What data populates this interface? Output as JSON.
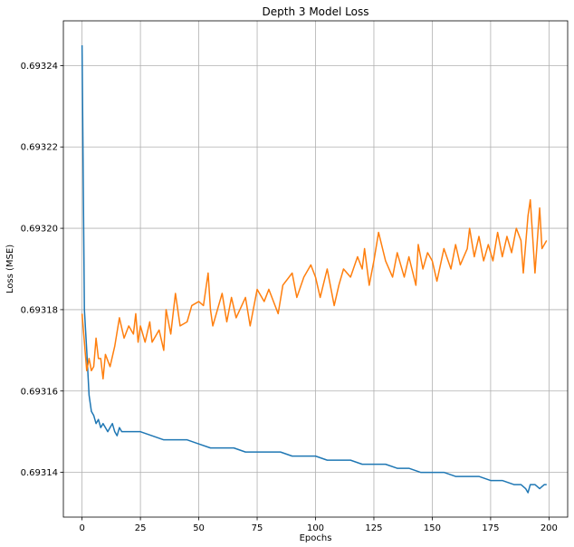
{
  "chart_data": {
    "type": "line",
    "title": "Depth 3 Model Loss",
    "xlabel": "Epochs",
    "ylabel": "Loss (MSE)",
    "xlim": [
      -8,
      208
    ],
    "ylim": [
      0.693129,
      0.693251
    ],
    "grid": true,
    "x_ticks": [
      0,
      25,
      50,
      75,
      100,
      125,
      150,
      175,
      200
    ],
    "y_ticks": [
      0.69314,
      0.69316,
      0.69318,
      0.6932,
      0.69322,
      0.69324
    ],
    "y_tick_labels": [
      "0.69314",
      "0.69316",
      "0.69318",
      "0.69320",
      "0.69322",
      "0.69324"
    ],
    "series": [
      {
        "color": "#1f77b4",
        "points": [
          [
            0,
            0.693245
          ],
          [
            1,
            0.69318
          ],
          [
            2,
            0.69317
          ],
          [
            3,
            0.693159
          ],
          [
            4,
            0.693155
          ],
          [
            5,
            0.693154
          ],
          [
            6,
            0.693152
          ],
          [
            7,
            0.693153
          ],
          [
            8,
            0.693151
          ],
          [
            9,
            0.693152
          ],
          [
            10,
            0.693151
          ],
          [
            11,
            0.69315
          ],
          [
            12,
            0.693151
          ],
          [
            13,
            0.693152
          ],
          [
            14,
            0.69315
          ],
          [
            15,
            0.693149
          ],
          [
            16,
            0.693151
          ],
          [
            17,
            0.69315
          ],
          [
            18,
            0.69315
          ],
          [
            19,
            0.69315
          ],
          [
            20,
            0.69315
          ],
          [
            25,
            0.69315
          ],
          [
            30,
            0.693149
          ],
          [
            35,
            0.693148
          ],
          [
            40,
            0.693148
          ],
          [
            45,
            0.693148
          ],
          [
            50,
            0.693147
          ],
          [
            55,
            0.693146
          ],
          [
            60,
            0.693146
          ],
          [
            65,
            0.693146
          ],
          [
            70,
            0.693145
          ],
          [
            75,
            0.693145
          ],
          [
            80,
            0.693145
          ],
          [
            85,
            0.693145
          ],
          [
            90,
            0.693144
          ],
          [
            95,
            0.693144
          ],
          [
            100,
            0.693144
          ],
          [
            105,
            0.693143
          ],
          [
            110,
            0.693143
          ],
          [
            115,
            0.693143
          ],
          [
            120,
            0.693142
          ],
          [
            125,
            0.693142
          ],
          [
            130,
            0.693142
          ],
          [
            135,
            0.693141
          ],
          [
            140,
            0.693141
          ],
          [
            145,
            0.69314
          ],
          [
            150,
            0.69314
          ],
          [
            155,
            0.69314
          ],
          [
            160,
            0.693139
          ],
          [
            165,
            0.693139
          ],
          [
            170,
            0.693139
          ],
          [
            175,
            0.693138
          ],
          [
            180,
            0.693138
          ],
          [
            185,
            0.693137
          ],
          [
            188,
            0.693137
          ],
          [
            190,
            0.693136
          ],
          [
            191,
            0.693135
          ],
          [
            192,
            0.693137
          ],
          [
            194,
            0.693137
          ],
          [
            196,
            0.693136
          ],
          [
            198,
            0.693137
          ],
          [
            199,
            0.693137
          ]
        ]
      },
      {
        "color": "#ff7f0e",
        "points": [
          [
            0,
            0.693179
          ],
          [
            1,
            0.693172
          ],
          [
            2,
            0.693165
          ],
          [
            3,
            0.693168
          ],
          [
            4,
            0.693165
          ],
          [
            5,
            0.693166
          ],
          [
            6,
            0.693173
          ],
          [
            7,
            0.693168
          ],
          [
            8,
            0.693168
          ],
          [
            9,
            0.693163
          ],
          [
            10,
            0.693169
          ],
          [
            12,
            0.693166
          ],
          [
            14,
            0.693171
          ],
          [
            16,
            0.693178
          ],
          [
            18,
            0.693173
          ],
          [
            20,
            0.693176
          ],
          [
            22,
            0.693174
          ],
          [
            23,
            0.693179
          ],
          [
            24,
            0.693172
          ],
          [
            25,
            0.693176
          ],
          [
            27,
            0.693172
          ],
          [
            29,
            0.693177
          ],
          [
            30,
            0.693172
          ],
          [
            33,
            0.693175
          ],
          [
            35,
            0.69317
          ],
          [
            36,
            0.69318
          ],
          [
            38,
            0.693174
          ],
          [
            40,
            0.693184
          ],
          [
            42,
            0.693176
          ],
          [
            45,
            0.693177
          ],
          [
            47,
            0.693181
          ],
          [
            50,
            0.693182
          ],
          [
            52,
            0.693181
          ],
          [
            54,
            0.693189
          ],
          [
            55,
            0.69318
          ],
          [
            56,
            0.693176
          ],
          [
            60,
            0.693184
          ],
          [
            62,
            0.693177
          ],
          [
            64,
            0.693183
          ],
          [
            66,
            0.693178
          ],
          [
            70,
            0.693183
          ],
          [
            72,
            0.693176
          ],
          [
            75,
            0.693185
          ],
          [
            78,
            0.693182
          ],
          [
            80,
            0.693185
          ],
          [
            84,
            0.693179
          ],
          [
            86,
            0.693186
          ],
          [
            90,
            0.693189
          ],
          [
            92,
            0.693183
          ],
          [
            95,
            0.693188
          ],
          [
            98,
            0.693191
          ],
          [
            100,
            0.693188
          ],
          [
            102,
            0.693183
          ],
          [
            105,
            0.69319
          ],
          [
            108,
            0.693181
          ],
          [
            110,
            0.693186
          ],
          [
            112,
            0.69319
          ],
          [
            115,
            0.693188
          ],
          [
            118,
            0.693193
          ],
          [
            120,
            0.69319
          ],
          [
            121,
            0.693195
          ],
          [
            123,
            0.693186
          ],
          [
            125,
            0.693192
          ],
          [
            127,
            0.693199
          ],
          [
            130,
            0.693192
          ],
          [
            133,
            0.693188
          ],
          [
            135,
            0.693194
          ],
          [
            138,
            0.693188
          ],
          [
            140,
            0.693193
          ],
          [
            143,
            0.693186
          ],
          [
            144,
            0.693196
          ],
          [
            146,
            0.69319
          ],
          [
            148,
            0.693194
          ],
          [
            150,
            0.693192
          ],
          [
            152,
            0.693187
          ],
          [
            155,
            0.693195
          ],
          [
            158,
            0.69319
          ],
          [
            160,
            0.693196
          ],
          [
            162,
            0.693191
          ],
          [
            165,
            0.693195
          ],
          [
            166,
            0.6932
          ],
          [
            168,
            0.693193
          ],
          [
            170,
            0.693198
          ],
          [
            172,
            0.693192
          ],
          [
            174,
            0.693196
          ],
          [
            176,
            0.693192
          ],
          [
            178,
            0.693199
          ],
          [
            180,
            0.693193
          ],
          [
            182,
            0.693198
          ],
          [
            184,
            0.693194
          ],
          [
            186,
            0.6932
          ],
          [
            188,
            0.693197
          ],
          [
            189,
            0.693189
          ],
          [
            190,
            0.693196
          ],
          [
            191,
            0.693203
          ],
          [
            192,
            0.693207
          ],
          [
            194,
            0.693189
          ],
          [
            196,
            0.693205
          ],
          [
            197,
            0.693195
          ],
          [
            199,
            0.693197
          ]
        ]
      }
    ]
  }
}
